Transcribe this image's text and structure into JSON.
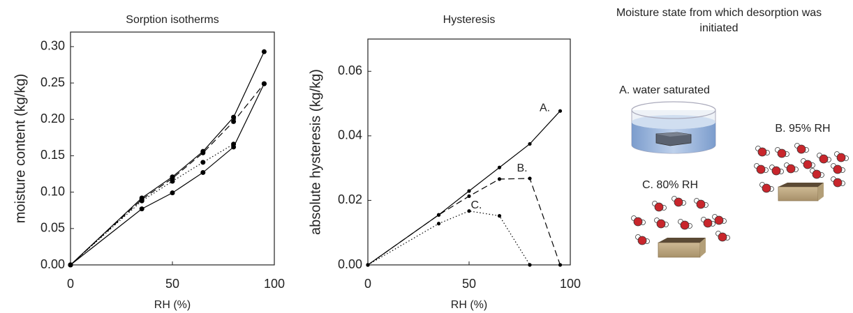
{
  "chart_data": [
    {
      "type": "line",
      "title": "Sorption isotherms",
      "x_label": "RH (%)",
      "y_label": "moisture content (kg/kg)",
      "x": [
        0,
        35,
        50,
        65,
        80,
        95
      ],
      "series": [
        {
          "color": "#000000",
          "dash": "solid",
          "values": [
            0,
            0.092,
            0.121,
            0.156,
            0.203,
            0.293
          ]
        },
        {
          "color": "#000000",
          "dash": "dashed",
          "values": [
            0,
            0.09,
            0.119,
            0.154,
            0.197,
            0.249
          ]
        },
        {
          "color": "#000000",
          "dash": "dotted",
          "values": [
            0,
            0.088,
            0.115,
            0.141,
            0.166,
            null
          ]
        },
        {
          "color": "#000000",
          "dash": "solid",
          "values": [
            0,
            0.077,
            0.099,
            0.127,
            0.162,
            0.249
          ]
        }
      ],
      "xlim": [
        0,
        100
      ],
      "xticks": [
        0,
        50,
        100
      ],
      "ylim": [
        0,
        0.32
      ],
      "yticks": [
        {
          "value": 0,
          "label": "0.00"
        },
        {
          "value": 0.05,
          "label": "0.05"
        },
        {
          "value": 0.1,
          "label": "0.10"
        },
        {
          "value": 0.15,
          "label": "0.15"
        },
        {
          "value": 0.2,
          "label": "0.20"
        },
        {
          "value": 0.25,
          "label": "0.25"
        },
        {
          "value": 0.3,
          "label": "0.30"
        }
      ],
      "grid": false
    },
    {
      "type": "line",
      "title": "Hysteresis",
      "x_label": "RH (%)",
      "y_label": "absolute hysteresis (kg/kg)",
      "x": [
        0,
        35,
        50,
        65,
        80,
        95
      ],
      "series": [
        {
          "label": "A.",
          "color": "#000000",
          "dash": "solid",
          "values": [
            0,
            0.0155,
            0.0229,
            0.0302,
            0.0375,
            0.0477
          ]
        },
        {
          "label": "B.",
          "color": "#000000",
          "dash": "dashed",
          "values": [
            0,
            0.0155,
            0.0213,
            0.0266,
            0.0268,
            0
          ]
        },
        {
          "label": "C.",
          "color": "#000000",
          "dash": "dotted",
          "values": [
            0,
            0.0128,
            0.0167,
            0.0152,
            0,
            null
          ]
        }
      ],
      "xlim": [
        0,
        100
      ],
      "xticks": [
        0,
        50,
        100
      ],
      "ylim": [
        0,
        0.07
      ],
      "yticks": [
        {
          "value": 0,
          "label": "0.00"
        },
        {
          "value": 0.02,
          "label": "0.02"
        },
        {
          "value": 0.04,
          "label": "0.04"
        },
        {
          "value": 0.06,
          "label": "0.06"
        }
      ],
      "grid": false
    }
  ],
  "illustration": {
    "title": "Moisture state from which desorption was initiated",
    "labels": [
      "A. water saturated",
      "B. 95% RH",
      "C. 80% RH"
    ]
  }
}
